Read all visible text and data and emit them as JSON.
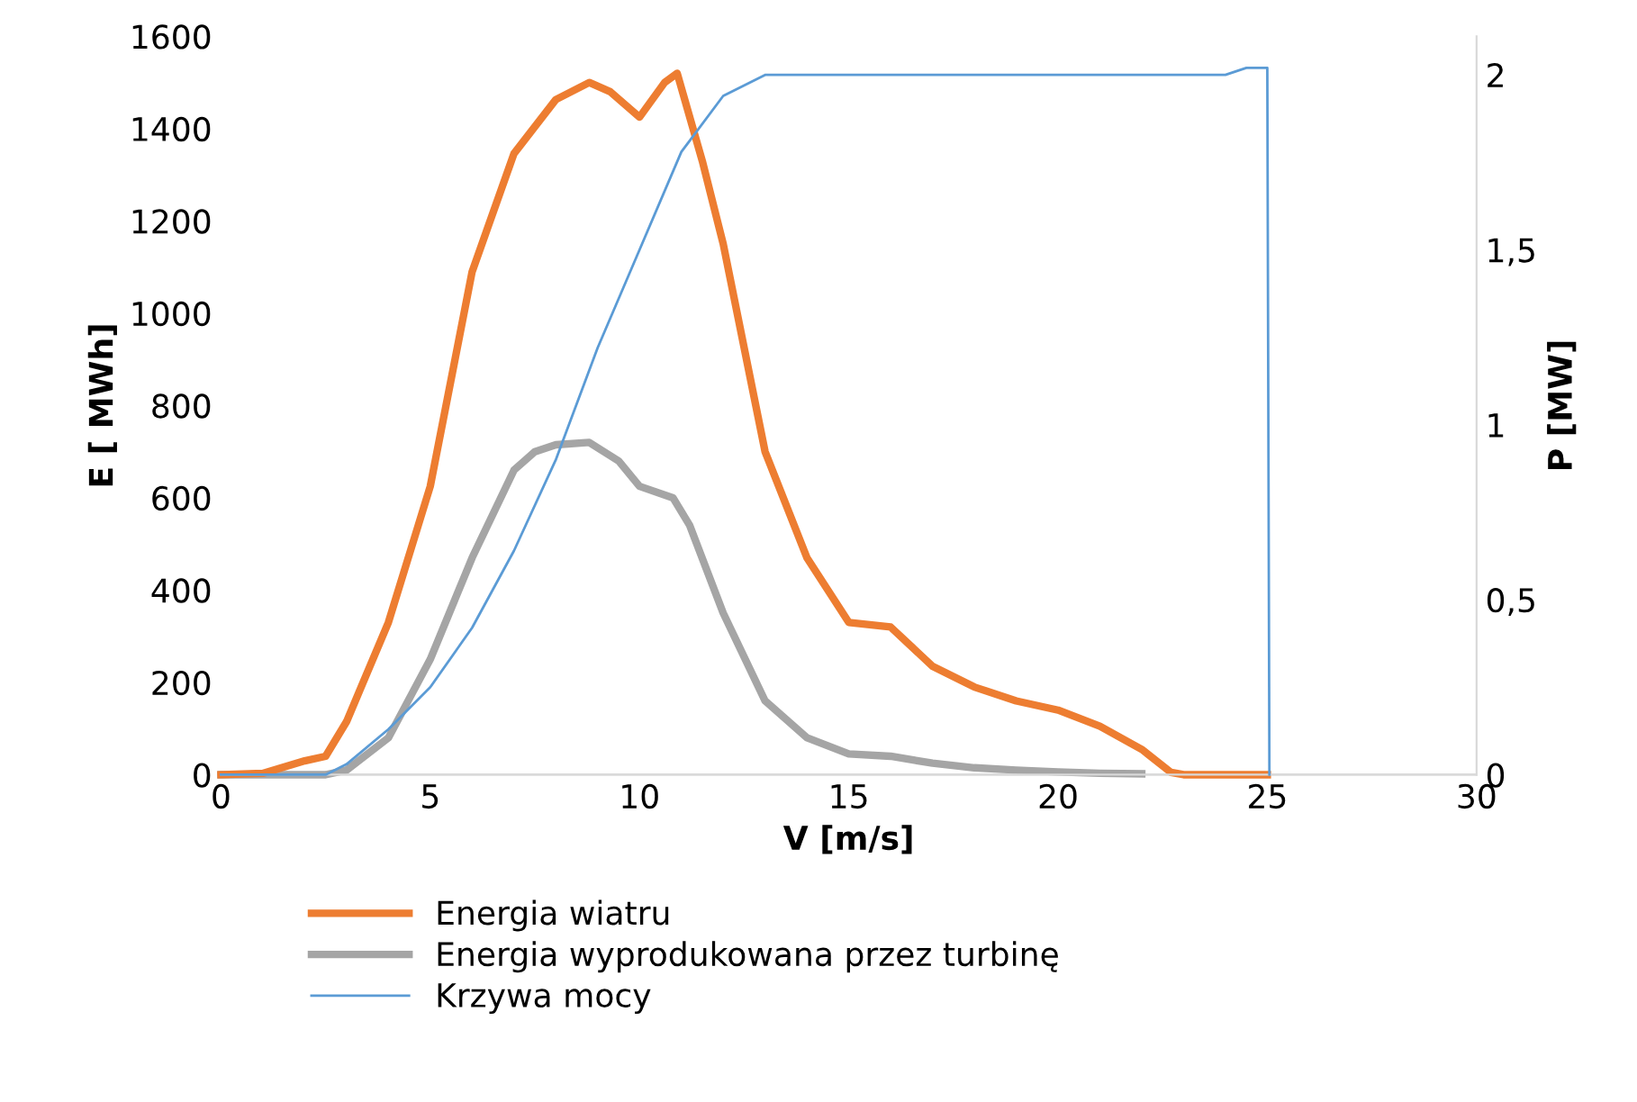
{
  "chart_data": {
    "type": "line",
    "xlabel": "V [m/s]",
    "ylabel": "E [ MWh]",
    "y2label": "P [MW]",
    "xlim": [
      0,
      30
    ],
    "xticks": [
      0,
      5,
      10,
      15,
      20,
      25,
      30
    ],
    "ylim": [
      0,
      1600
    ],
    "yticks": [
      0,
      200,
      400,
      600,
      800,
      1000,
      1200,
      1400,
      1600
    ],
    "y2lim": [
      0,
      2.11
    ],
    "y2ticks": [
      0,
      {
        "value": 0.5,
        "label": "0,5"
      },
      1,
      {
        "value": 1.5,
        "label": "1,5"
      },
      2
    ],
    "grid": false,
    "legend": "bottom",
    "marker": "none",
    "line_style": "solid",
    "series": [
      {
        "name": "Energia wiatru",
        "color": "#ed7d31",
        "x": [
          0,
          1,
          2,
          2.5,
          3,
          4,
          4.6,
          5,
          6,
          7,
          8,
          8.8,
          9.3,
          10,
          10.6,
          10.9,
          11.5,
          12,
          13,
          14,
          15,
          16,
          17,
          18,
          19,
          20,
          21,
          22,
          22.7,
          23,
          24,
          25
        ],
        "values": [
          0,
          3,
          30,
          40,
          115,
          330,
          507,
          625,
          1090,
          1346,
          1463,
          1500,
          1480,
          1425,
          1500,
          1520,
          1330,
          1150,
          700,
          470,
          330,
          320,
          235,
          190,
          160,
          140,
          105,
          55,
          5,
          0,
          0,
          0
        ]
      },
      {
        "name": "Energia wyprodukowana przez turbinę",
        "color": "#a5a5a5",
        "x": [
          0,
          2.5,
          3,
          4,
          5,
          6,
          7,
          7.5,
          8,
          8.8,
          9.5,
          10,
          10.8,
          11.2,
          12,
          13,
          14,
          15,
          16,
          17,
          18,
          19,
          20,
          21,
          22
        ],
        "values": [
          0,
          0,
          10,
          80,
          250,
          470,
          660,
          700,
          715,
          720,
          680,
          625,
          600,
          540,
          350,
          160,
          80,
          45,
          40,
          25,
          15,
          10,
          6,
          3,
          2
        ]
      },
      {
        "name": "Krzywa mocy",
        "color": "#5b9bd5",
        "axis": "y2",
        "x": [
          0,
          2.5,
          3,
          4,
          5,
          6,
          7,
          8,
          9,
          10,
          11,
          12,
          13,
          14,
          24,
          24.5,
          25,
          25.05
        ],
        "values": [
          0,
          0,
          0.03,
          0.13,
          0.25,
          0.42,
          0.64,
          0.9,
          1.22,
          1.5,
          1.78,
          1.94,
          2.0,
          2.0,
          2.0,
          2.02,
          2.02,
          0
        ]
      }
    ]
  }
}
